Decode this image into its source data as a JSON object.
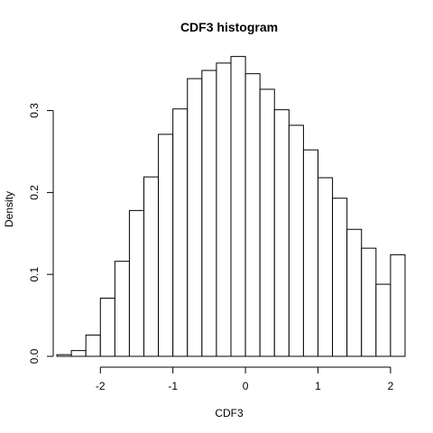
{
  "chart_data": {
    "type": "bar",
    "title": "CDF3  histogram",
    "xlabel": "CDF3",
    "ylabel": "Density",
    "xlim": [
      -2.65,
      2.2
    ],
    "ylim": [
      0,
      0.37
    ],
    "x_ticks": [
      -2,
      -1,
      0,
      1,
      2
    ],
    "x_tick_labels": [
      "-2",
      "-1",
      "0",
      "1",
      "2"
    ],
    "y_ticks": [
      0.0,
      0.1,
      0.2,
      0.3
    ],
    "y_tick_labels": [
      "0.0",
      "0.1",
      "0.2",
      "0.3"
    ],
    "bins": [
      {
        "x0": -2.6,
        "x1": -2.4,
        "value": 0.002
      },
      {
        "x0": -2.4,
        "x1": -2.2,
        "value": 0.007
      },
      {
        "x0": -2.2,
        "x1": -2.0,
        "value": 0.026
      },
      {
        "x0": -2.0,
        "x1": -1.8,
        "value": 0.071
      },
      {
        "x0": -1.8,
        "x1": -1.6,
        "value": 0.116
      },
      {
        "x0": -1.6,
        "x1": -1.4,
        "value": 0.178
      },
      {
        "x0": -1.4,
        "x1": -1.2,
        "value": 0.219
      },
      {
        "x0": -1.2,
        "x1": -1.0,
        "value": 0.271
      },
      {
        "x0": -1.0,
        "x1": -0.8,
        "value": 0.302
      },
      {
        "x0": -0.8,
        "x1": -0.6,
        "value": 0.339
      },
      {
        "x0": -0.6,
        "x1": -0.4,
        "value": 0.349
      },
      {
        "x0": -0.4,
        "x1": -0.2,
        "value": 0.358
      },
      {
        "x0": -0.2,
        "x1": 0.0,
        "value": 0.366
      },
      {
        "x0": 0.0,
        "x1": 0.2,
        "value": 0.345
      },
      {
        "x0": 0.2,
        "x1": 0.4,
        "value": 0.326
      },
      {
        "x0": 0.4,
        "x1": 0.6,
        "value": 0.301
      },
      {
        "x0": 0.6,
        "x1": 0.8,
        "value": 0.282
      },
      {
        "x0": 0.8,
        "x1": 1.0,
        "value": 0.252
      },
      {
        "x0": 1.0,
        "x1": 1.2,
        "value": 0.218
      },
      {
        "x0": 1.2,
        "x1": 1.4,
        "value": 0.193
      },
      {
        "x0": 1.4,
        "x1": 1.6,
        "value": 0.155
      },
      {
        "x0": 1.6,
        "x1": 1.8,
        "value": 0.132
      },
      {
        "x0": 1.8,
        "x1": 2.0,
        "value": 0.088
      },
      {
        "x0": 2.0,
        "x1": 2.2,
        "value": 0.124
      }
    ],
    "grid": false,
    "bar_fill": "#ffffff",
    "bar_stroke": "#000000"
  }
}
